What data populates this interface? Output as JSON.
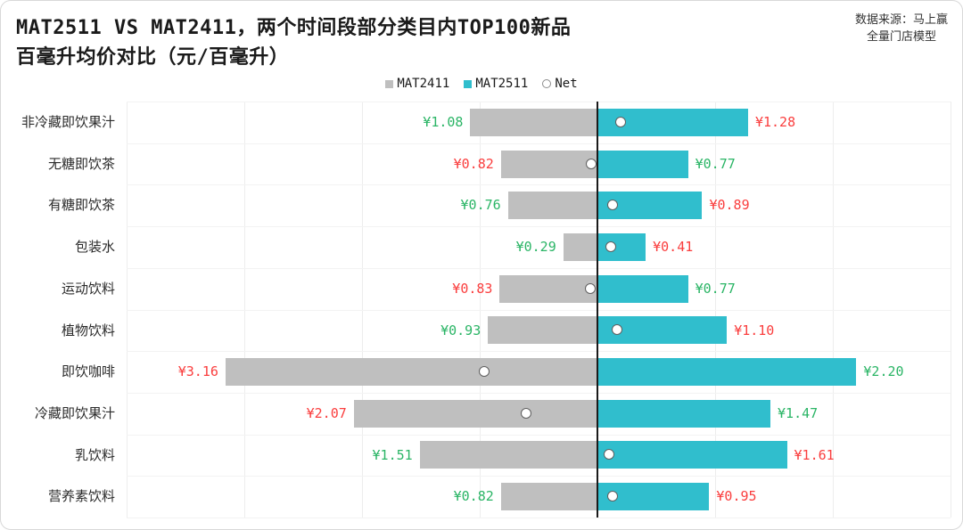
{
  "header": {
    "title_line1": "MAT2511 VS MAT2411，两个时间段部分类目内TOP100新品",
    "title_line2": "百毫升均价对比（元/百毫升）",
    "source_line1": "数据来源：马上赢",
    "source_line2": "全量门店模型"
  },
  "legend": {
    "items": [
      {
        "label": "MAT2411",
        "swatch": "gray-square"
      },
      {
        "label": "MAT2511",
        "swatch": "teal-square"
      },
      {
        "label": "Net",
        "swatch": "open-circle"
      }
    ]
  },
  "colors": {
    "mat2411_bar": "#BFBFBF",
    "mat2511_bar": "#30BECD",
    "green": "#2BB566",
    "red": "#FA3E3E",
    "gridline": "#EDEDED",
    "row_separator": "#F3F3F3",
    "zero_line": "#1A1A1A",
    "net_marker_border": "#5F5F5F"
  },
  "chart_data": {
    "type": "bar",
    "subtype": "diverging-horizontal-tornado",
    "title": "MAT2511 VS MAT2411，两个时间段部分类目内TOP100新品 百毫升均价对比（元/百毫升）",
    "xlabel": "元/百毫升",
    "ylabel": "",
    "xlim": [
      -4,
      3
    ],
    "grid": true,
    "legend_position": "top-center",
    "note": "MAT2411 bars extend left of the zero axis, MAT2511 bars extend right; Net circle marker = MAT2511 - MAT2411 plotted on the same scale",
    "categories": [
      "非冷藏即饮果汁",
      "无糖即饮茶",
      "有糖即饮茶",
      "包装水",
      "运动饮料",
      "植物饮料",
      "即饮咖啡",
      "冷藏即饮果汁",
      "乳饮料",
      "营养素饮料"
    ],
    "series": [
      {
        "name": "MAT2411",
        "values": [
          1.08,
          0.82,
          0.76,
          0.29,
          0.83,
          0.93,
          3.16,
          2.07,
          1.51,
          0.82
        ]
      },
      {
        "name": "MAT2511",
        "values": [
          1.28,
          0.77,
          0.89,
          0.41,
          0.77,
          1.1,
          2.2,
          1.47,
          1.61,
          0.95
        ]
      },
      {
        "name": "Net",
        "values": [
          0.2,
          -0.05,
          0.13,
          0.12,
          -0.06,
          0.17,
          -0.96,
          -0.6,
          0.1,
          0.13
        ]
      }
    ],
    "rows": [
      {
        "category": "非冷藏即饮果汁",
        "mat2411": 1.08,
        "mat2511": 1.28,
        "net": 0.2,
        "mat2411_label": "¥1.08",
        "mat2511_label": "¥1.28",
        "mat2411_label_color": "green",
        "mat2511_label_color": "red"
      },
      {
        "category": "无糖即饮茶",
        "mat2411": 0.82,
        "mat2511": 0.77,
        "net": -0.05,
        "mat2411_label": "¥0.82",
        "mat2511_label": "¥0.77",
        "mat2411_label_color": "red",
        "mat2511_label_color": "green"
      },
      {
        "category": "有糖即饮茶",
        "mat2411": 0.76,
        "mat2511": 0.89,
        "net": 0.13,
        "mat2411_label": "¥0.76",
        "mat2511_label": "¥0.89",
        "mat2411_label_color": "green",
        "mat2511_label_color": "red"
      },
      {
        "category": "包装水",
        "mat2411": 0.29,
        "mat2511": 0.41,
        "net": 0.12,
        "mat2411_label": "¥0.29",
        "mat2511_label": "¥0.41",
        "mat2411_label_color": "green",
        "mat2511_label_color": "red"
      },
      {
        "category": "运动饮料",
        "mat2411": 0.83,
        "mat2511": 0.77,
        "net": -0.06,
        "mat2411_label": "¥0.83",
        "mat2511_label": "¥0.77",
        "mat2411_label_color": "red",
        "mat2511_label_color": "green"
      },
      {
        "category": "植物饮料",
        "mat2411": 0.93,
        "mat2511": 1.1,
        "net": 0.17,
        "mat2411_label": "¥0.93",
        "mat2511_label": "¥1.10",
        "mat2411_label_color": "green",
        "mat2511_label_color": "red"
      },
      {
        "category": "即饮咖啡",
        "mat2411": 3.16,
        "mat2511": 2.2,
        "net": -0.96,
        "mat2411_label": "¥3.16",
        "mat2511_label": "¥2.20",
        "mat2411_label_color": "red",
        "mat2511_label_color": "green"
      },
      {
        "category": "冷藏即饮果汁",
        "mat2411": 2.07,
        "mat2511": 1.47,
        "net": -0.6,
        "mat2411_label": "¥2.07",
        "mat2511_label": "¥1.47",
        "mat2411_label_color": "red",
        "mat2511_label_color": "green"
      },
      {
        "category": "乳饮料",
        "mat2411": 1.51,
        "mat2511": 1.61,
        "net": 0.1,
        "mat2411_label": "¥1.51",
        "mat2511_label": "¥1.61",
        "mat2411_label_color": "green",
        "mat2511_label_color": "red"
      },
      {
        "category": "营养素饮料",
        "mat2411": 0.82,
        "mat2511": 0.95,
        "net": 0.13,
        "mat2411_label": "¥0.82",
        "mat2511_label": "¥0.95",
        "mat2411_label_color": "green",
        "mat2511_label_color": "red"
      }
    ]
  }
}
